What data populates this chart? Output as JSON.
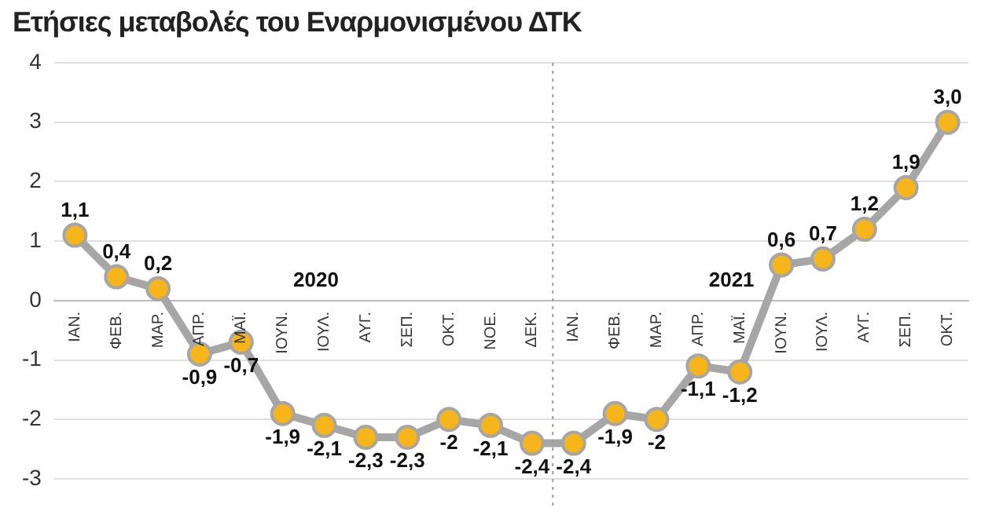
{
  "chart_data": {
    "type": "line",
    "title": "Ετήσιες μεταβολές του Εναρμονισμένου ΔΤΚ",
    "categories": [
      "ΙΑΝ.",
      "ΦΕΒ.",
      "ΜΑΡ.",
      "ΑΠΡ.",
      "ΜΑΪ.",
      "ΙΟΥΝ.",
      "ΙΟΥΛ.",
      "ΑΥΓ.",
      "ΣΕΠ.",
      "ΟΚΤ.",
      "ΝΟΕ.",
      "ΔΕΚ.",
      "ΙΑΝ.",
      "ΦΕΒ.",
      "ΜΑΡ.",
      "ΑΠΡ.",
      "ΜΑΪ.",
      "ΙΟΥΝ.",
      "ΙΟΥΛ.",
      "ΑΥΓ.",
      "ΣΕΠ.",
      "ΟΚΤ."
    ],
    "series": [
      {
        "color": "#a6a6a6",
        "values": [
          1.1,
          0.4,
          0.2,
          -0.9,
          -0.7,
          -1.9,
          -2.1,
          -2.3,
          -2.3,
          -2,
          -2.1,
          -2.4,
          -2.4,
          -1.9,
          -2,
          -1.1,
          -1.2,
          0.6,
          0.7,
          1.2,
          1.9,
          3.0
        ],
        "value_labels": [
          "1,1",
          "0,4",
          "0,2",
          "-0,9",
          "-0,7",
          "-1,9",
          "-2,1",
          "-2,3",
          "-2,3",
          "-2",
          "-2,1",
          "-2,4",
          "-2,4",
          "-1,9",
          "-2",
          "-1,1",
          "-1,2",
          "0,6",
          "0,7",
          "1,2",
          "1,9",
          "3,0"
        ]
      }
    ],
    "ylim": [
      -3,
      4
    ],
    "yticks": [
      -3,
      -2,
      -1,
      0,
      1,
      2,
      3,
      4
    ],
    "grid": "y",
    "legend": false,
    "marker": "circle",
    "line_style": "solid",
    "annotations": [
      "2020",
      "2021"
    ],
    "ref_lines": [
      {
        "axis": "x",
        "value": "ΔΕΚ.",
        "color": "#999999",
        "line_style": "dotted"
      }
    ]
  }
}
